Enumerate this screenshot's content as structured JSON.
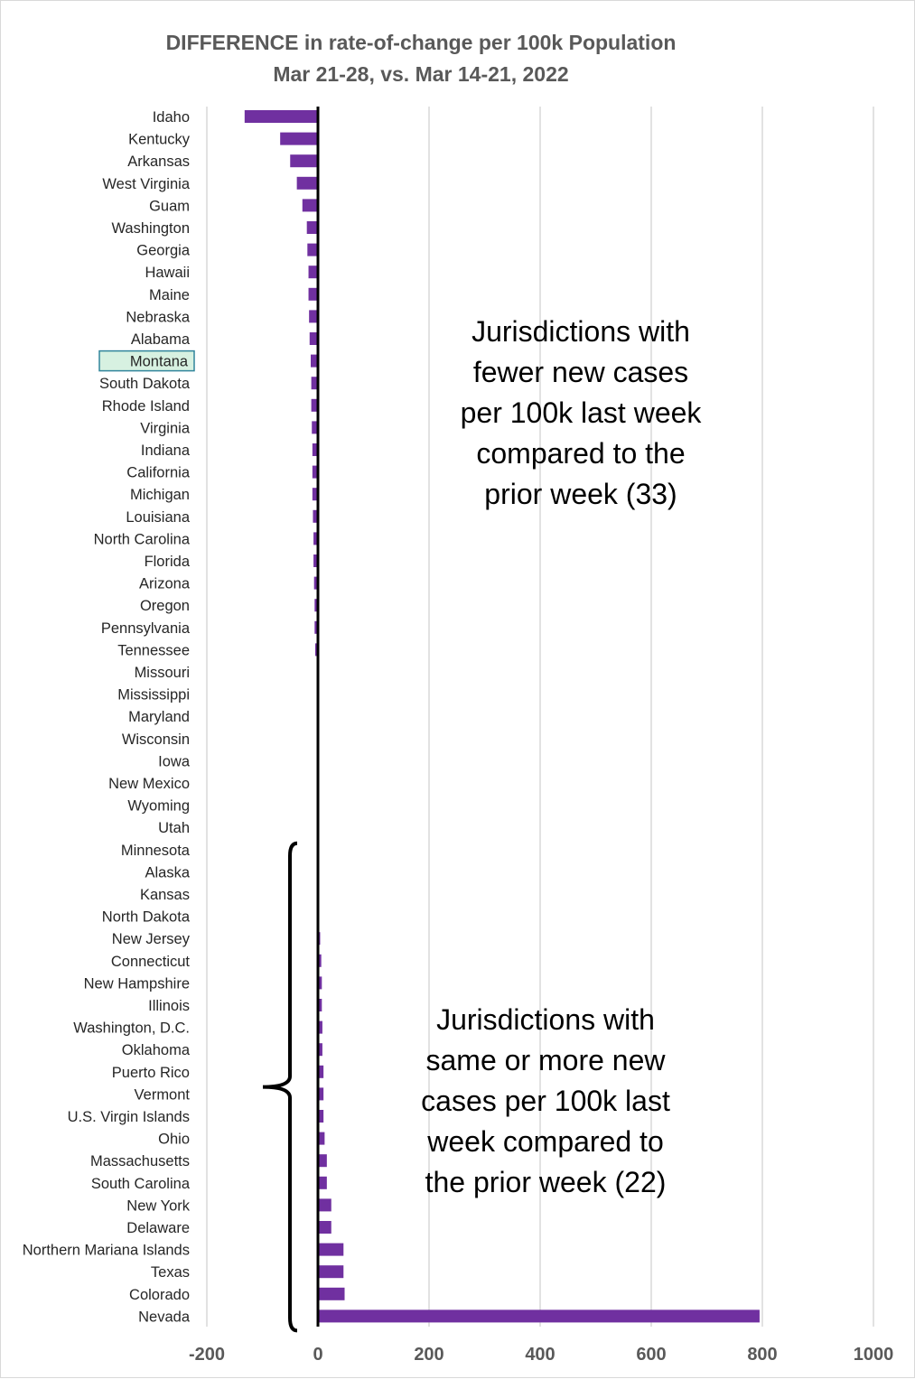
{
  "chart_data": {
    "type": "bar",
    "orientation": "horizontal",
    "title": "DIFFERENCE in rate-of-change per 100k Population",
    "subtitle": "Mar 21-28, vs. Mar 14-21, 2022",
    "xlim": [
      -200,
      1000
    ],
    "xticks": [
      -200,
      0,
      200,
      400,
      600,
      800,
      1000
    ],
    "grid": true,
    "highlighted_category": "Montana",
    "categories": [
      "Idaho",
      "Kentucky",
      "Arkansas",
      "West Virginia",
      "Guam",
      "Washington",
      "Georgia",
      "Hawaii",
      "Maine",
      "Nebraska",
      "Alabama",
      "Montana",
      "South Dakota",
      "Rhode Island",
      "Virginia",
      "Indiana",
      "California",
      "Michigan",
      "Louisiana",
      "North Carolina",
      "Florida",
      "Arizona",
      "Oregon",
      "Pennsylvania",
      "Tennessee",
      "Missouri",
      "Mississippi",
      "Maryland",
      "Wisconsin",
      "Iowa",
      "New Mexico",
      "Wyoming",
      "Utah",
      "Minnesota",
      "Alaska",
      "Kansas",
      "North Dakota",
      "New Jersey",
      "Connecticut",
      "New Hampshire",
      "Illinois",
      "Washington, D.C.",
      "Oklahoma",
      "Puerto Rico",
      "Vermont",
      "U.S. Virgin Islands",
      "Ohio",
      "Massachusetts",
      "South Carolina",
      "New York",
      "Delaware",
      "Northern Mariana Islands",
      "Texas",
      "Colorado",
      "Nevada"
    ],
    "values": [
      -132,
      -68,
      -50,
      -38,
      -28,
      -20,
      -19,
      -17,
      -17,
      -16,
      -15,
      -13,
      -12,
      -12,
      -11,
      -10,
      -10,
      -10,
      -9,
      -8,
      -8,
      -7,
      -6,
      -6,
      -5,
      -1,
      -1,
      -1,
      -1,
      -1,
      -1,
      -1,
      -1,
      0,
      0,
      0,
      0,
      4,
      6,
      7,
      7,
      8,
      8,
      10,
      10,
      10,
      12,
      16,
      16,
      24,
      24,
      46,
      46,
      48,
      795
    ],
    "bar_color": "#7030a0",
    "annotations": [
      {
        "text": "Jurisdictions with fewer new cases per 100k last week compared to the prior week (33)",
        "lines": [
          "Jurisdictions with",
          "fewer new cases",
          "per 100k last week",
          "compared to the",
          "prior week (33)"
        ]
      },
      {
        "text": "Jurisdictions with same or more new cases per 100k last week compared to the prior week (22)",
        "lines": [
          "Jurisdictions with",
          "same or more new",
          "cases per 100k last",
          "week compared to",
          "the prior week (22)"
        ]
      }
    ]
  }
}
